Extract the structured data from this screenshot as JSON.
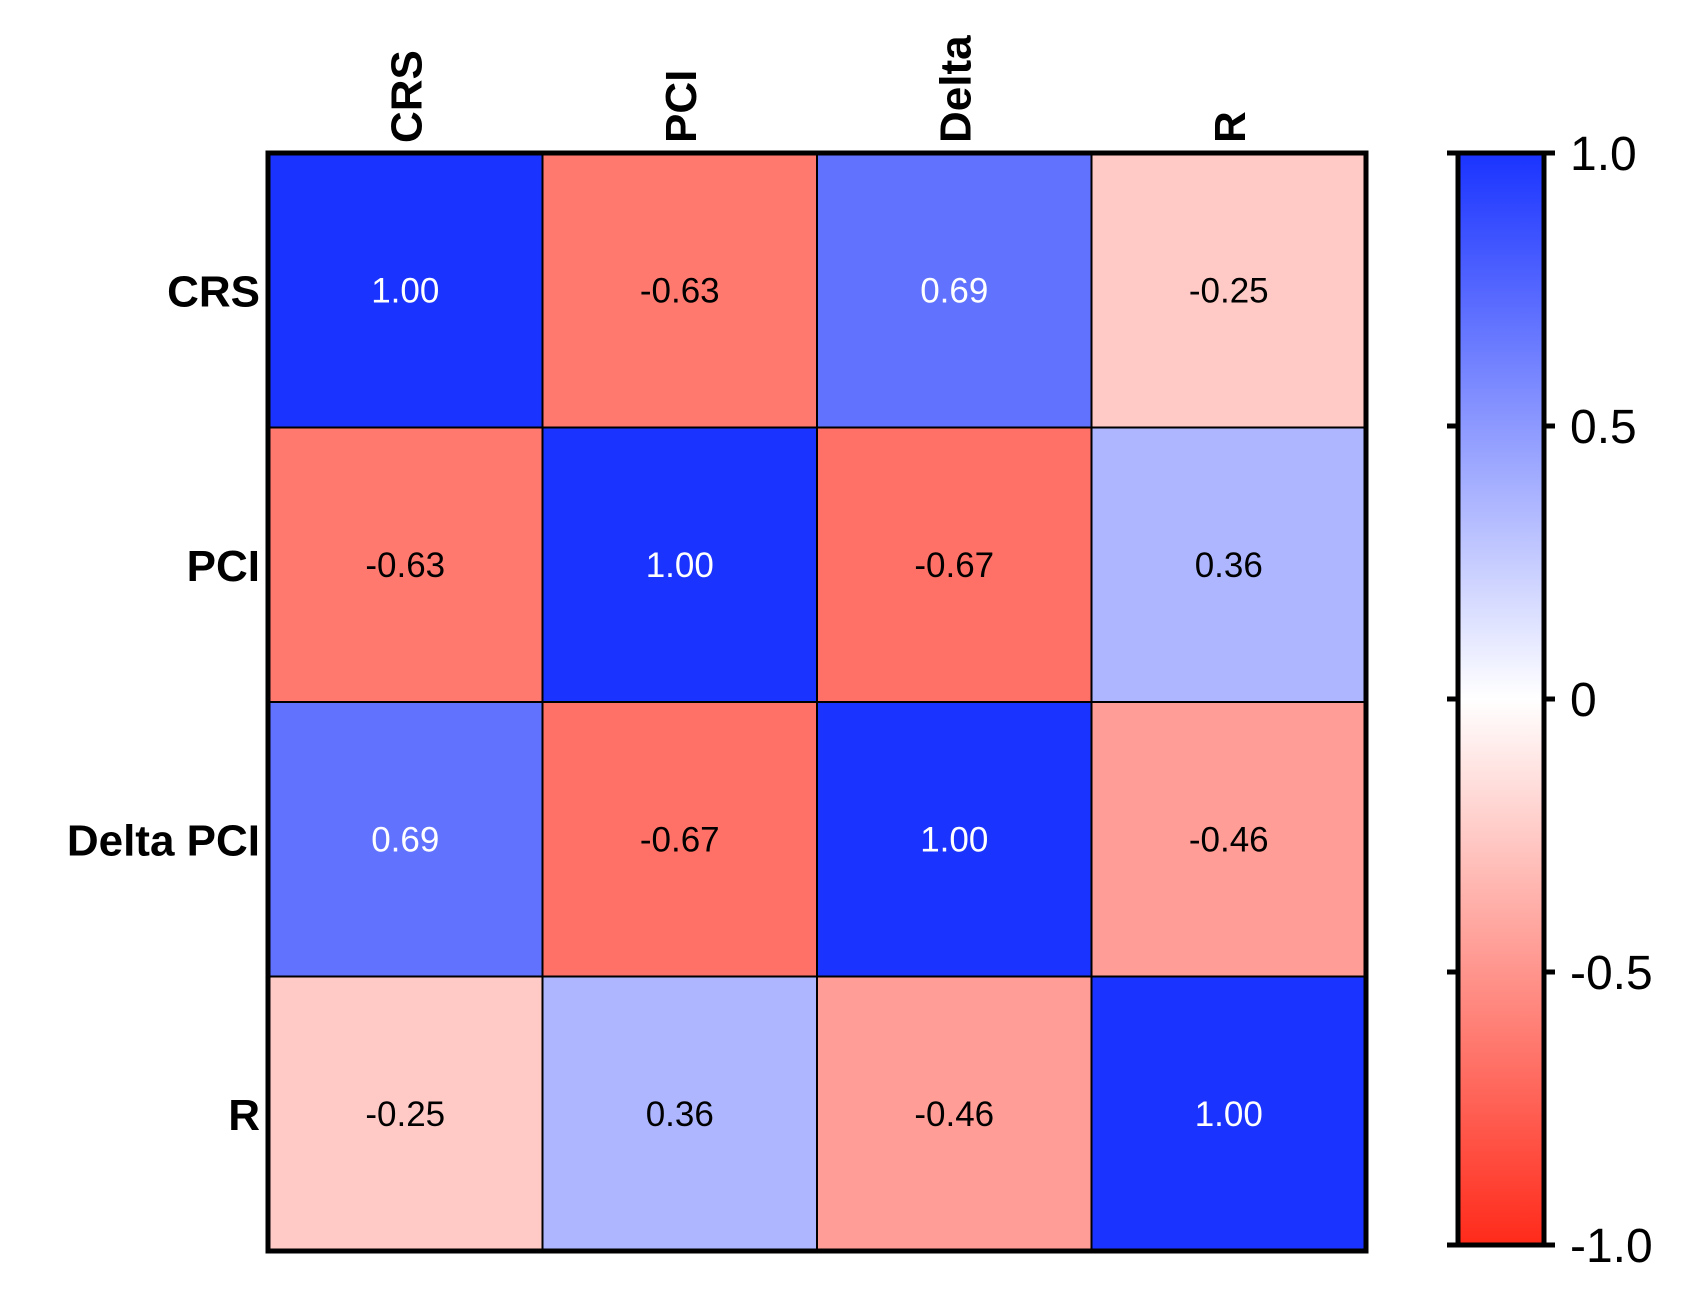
{
  "chart_data": {
    "type": "heatmap",
    "rows": [
      "CRS",
      "PCI",
      "Delta PCI",
      "R"
    ],
    "columns": [
      "CRS",
      "PCI",
      "Delta",
      "R"
    ],
    "values": [
      [
        1.0,
        -0.63,
        0.69,
        -0.25
      ],
      [
        -0.63,
        1.0,
        -0.67,
        0.36
      ],
      [
        0.69,
        -0.67,
        1.0,
        -0.46
      ],
      [
        -0.25,
        0.36,
        -0.46,
        1.0
      ]
    ],
    "value_labels": [
      [
        "1.00",
        "-0.63",
        "0.69",
        "-0.25"
      ],
      [
        "-0.63",
        "1.00",
        "-0.67",
        "0.36"
      ],
      [
        "0.69",
        "-0.67",
        "1.00",
        "-0.46"
      ],
      [
        "-0.25",
        "0.36",
        "-0.46",
        "1.00"
      ]
    ],
    "colorbar": {
      "range": [
        -1.0,
        1.0
      ],
      "ticks": [
        1.0,
        0.5,
        0,
        -0.5,
        -1.0
      ],
      "tick_labels": [
        "1.0",
        "0.5",
        "0",
        "-0.5",
        "-1.0"
      ],
      "low_color": "#ff2a1a",
      "mid_color": "#ffffff",
      "high_color": "#1a33ff"
    }
  }
}
